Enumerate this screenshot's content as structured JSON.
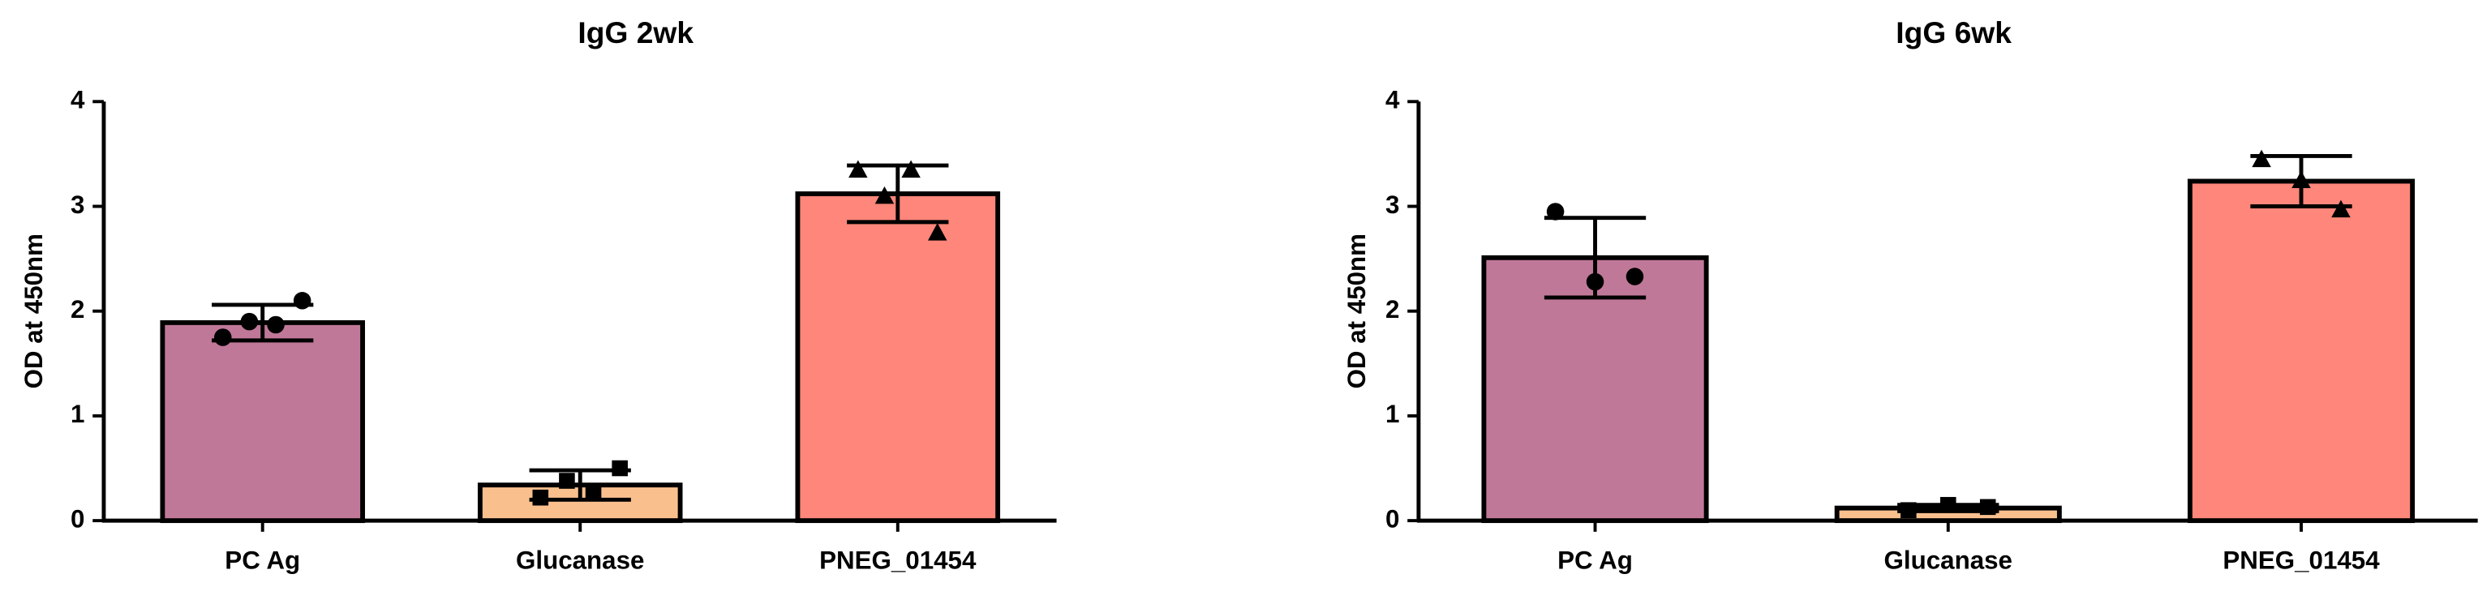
{
  "chart_data": [
    {
      "type": "bar",
      "title": "IgG 2wk",
      "y_label": "OD at 450nm",
      "categories": [
        "PC Ag",
        "Glucanase",
        "PNEG_01454"
      ],
      "values": [
        1.89,
        0.34,
        3.12
      ],
      "errors": [
        0.17,
        0.14,
        0.27
      ],
      "points": [
        [
          1.75,
          1.9,
          1.87,
          2.1
        ],
        [
          0.22,
          0.38,
          0.28,
          0.5
        ],
        [
          3.35,
          3.1,
          3.35,
          2.75
        ]
      ],
      "markers": [
        "circle",
        "square",
        "triangle"
      ],
      "colors": [
        "#c07899",
        "#f9c08e",
        "#fe867a"
      ],
      "ylim": [
        0,
        4
      ],
      "yticks": [
        0,
        1,
        2,
        3,
        4
      ]
    },
    {
      "type": "bar",
      "title": "IgG 6wk",
      "y_label": "OD at 450nm",
      "categories": [
        "PC Ag",
        "Glucanase",
        "PNEG_01454"
      ],
      "values": [
        2.51,
        0.12,
        3.24
      ],
      "errors": [
        0.38,
        0.03,
        0.24
      ],
      "points": [
        [
          2.95,
          2.28,
          2.33
        ],
        [
          0.1,
          0.15,
          0.13
        ],
        [
          3.45,
          3.25,
          2.97
        ]
      ],
      "markers": [
        "circle",
        "square",
        "triangle"
      ],
      "colors": [
        "#c07899",
        "#f9c08e",
        "#fe867a"
      ],
      "ylim": [
        0,
        4
      ],
      "yticks": [
        0,
        1,
        2,
        3,
        4
      ]
    }
  ]
}
